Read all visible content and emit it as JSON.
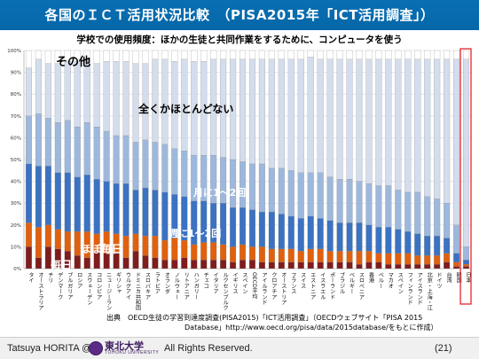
{
  "header": {
    "title": "各国のＩＣＴ活用状況比較　（PISA2015年「ICT活用調査」）",
    "subtitle": "学校での使用頻度：ほかの生徒と共同作業をするために、コンピュータを使う"
  },
  "source": {
    "line1": "出典　OECD生徒の学習到達度調査(PISA2015)「ICT活用調査」（OECDウェブサイト「PISA 2015",
    "line2": "Database」http://www.oecd.org/pisa/data/2015database/をもとに作成）"
  },
  "footer": {
    "author": "Tatsuya HORITA @",
    "university": "東北大学",
    "university_en": "TOHOKU UNIVERSITY",
    "rights": "All Rights Reserved.",
    "page": "(21)"
  },
  "chart_data": {
    "type": "bar",
    "stacked": true,
    "y_ticks": [
      "0%",
      "10%",
      "20%",
      "30%",
      "40%",
      "50%",
      "60%",
      "70%",
      "80%",
      "90%",
      "100%"
    ],
    "ylim": [
      0,
      100
    ],
    "highlight_category": "日本",
    "highlight_color": "#e8252b",
    "categories": [
      "タイ",
      "オーストラリア",
      "チリ",
      "デンマーク",
      "ブルガリア",
      "ロシア",
      "スウェーデン",
      "コロンビア",
      "ニュージーランド",
      "ギリシャ",
      "ウルグアイ",
      "ドミニカ共和国",
      "スロバキア",
      "ラトビア",
      "オランダ",
      "ノルウェー",
      "リトアニア",
      "ハンガリー",
      "チェコ",
      "イタリア",
      "ルクセンブルク",
      "イギリス",
      "スペイン",
      "OECD平均",
      "アイルランド",
      "クロアチア",
      "オーストリア",
      "フランス",
      "スイス",
      "エストニア",
      "イスラエル",
      "ポーランド",
      "ブラジル",
      "ベルギー",
      "スロベニア",
      "香港",
      "ペルー",
      "マカオ",
      "スペイン",
      "フィンランド",
      "アイスランド",
      "北京・上海・江蘇・広東",
      "ドイツ",
      "台湾",
      "韓国",
      "日本"
    ],
    "series": [
      {
        "name": "毎日",
        "color": "#7f1d1d",
        "values": [
          10,
          5,
          10,
          9,
          8,
          6,
          5,
          8,
          7,
          7,
          5,
          8,
          6,
          5,
          4,
          4,
          5,
          4,
          4,
          4,
          4,
          3,
          4,
          4,
          3,
          3,
          3,
          3,
          3,
          3,
          3,
          3,
          3,
          3,
          2,
          3,
          3,
          2,
          2,
          2,
          2,
          2,
          2,
          3,
          1,
          1
        ]
      },
      {
        "name": "ほぼ毎日",
        "color": "#e0600e",
        "values": [
          11,
          14,
          10,
          9,
          9,
          11,
          12,
          8,
          10,
          9,
          10,
          8,
          9,
          10,
          9,
          10,
          8,
          7,
          8,
          8,
          7,
          7,
          7,
          6,
          7,
          6,
          6,
          6,
          5,
          6,
          6,
          5,
          5,
          5,
          6,
          5,
          4,
          5,
          5,
          5,
          4,
          4,
          4,
          4,
          2,
          1
        ]
      },
      {
        "name": "週に1～2回",
        "color": "#3b72c2",
        "values": [
          27,
          28,
          27,
          26,
          27,
          25,
          26,
          25,
          23,
          23,
          24,
          20,
          22,
          21,
          22,
          20,
          20,
          20,
          19,
          18,
          19,
          18,
          17,
          17,
          16,
          17,
          16,
          15,
          15,
          15,
          14,
          14,
          13,
          13,
          13,
          12,
          12,
          12,
          11,
          10,
          10,
          9,
          9,
          7,
          4,
          2
        ]
      },
      {
        "name": "月に1～2回",
        "color": "#9db8dc",
        "values": [
          22,
          24,
          22,
          23,
          24,
          23,
          24,
          24,
          23,
          22,
          22,
          22,
          22,
          22,
          22,
          21,
          21,
          21,
          21,
          22,
          21,
          22,
          21,
          21,
          22,
          20,
          21,
          21,
          21,
          20,
          21,
          20,
          20,
          20,
          19,
          19,
          19,
          19,
          18,
          18,
          19,
          18,
          17,
          16,
          13,
          6
        ]
      },
      {
        "name": "全くかほとんどない",
        "color": "#d4dded",
        "values": [
          22,
          25,
          25,
          27,
          27,
          30,
          29,
          29,
          32,
          34,
          34,
          36,
          35,
          38,
          39,
          40,
          42,
          43,
          43,
          44,
          45,
          46,
          47,
          48,
          48,
          50,
          50,
          51,
          52,
          53,
          52,
          54,
          55,
          55,
          56,
          57,
          58,
          58,
          60,
          61,
          61,
          63,
          64,
          66,
          76,
          86
        ]
      },
      {
        "name": "その他",
        "color": "#ffffff",
        "values": [
          8,
          4,
          6,
          6,
          5,
          5,
          4,
          6,
          5,
          5,
          5,
          6,
          6,
          4,
          4,
          5,
          4,
          5,
          5,
          4,
          4,
          4,
          4,
          4,
          4,
          4,
          4,
          4,
          4,
          3,
          4,
          4,
          4,
          4,
          4,
          4,
          4,
          4,
          4,
          4,
          4,
          4,
          4,
          4,
          4,
          4
        ]
      }
    ]
  }
}
